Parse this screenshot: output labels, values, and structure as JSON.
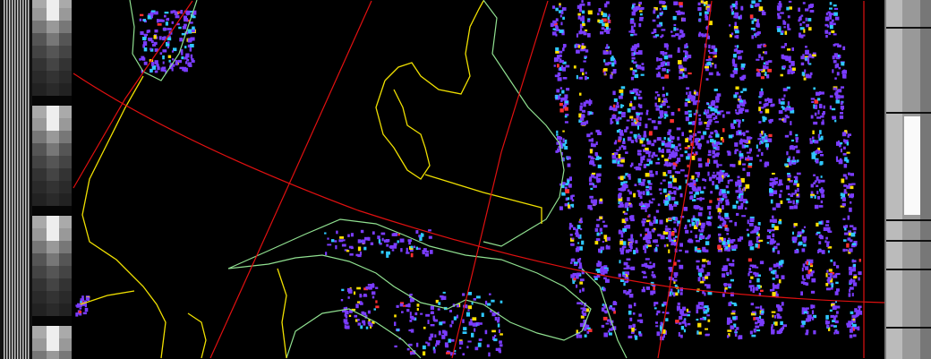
{
  "image": {
    "kind": "weather satellite image with map overlay",
    "colors": {
      "background": "#000000",
      "borders": "#f0e000",
      "coastlines": "#90e090",
      "graticule": "#e01010",
      "cloud_low": "#7a3cff",
      "cloud_mid": "#2ec8ff",
      "cloud_high": "#ffe000",
      "cloud_peak": "#ff3030"
    },
    "telemetry_strips": [
      "left",
      "right"
    ]
  }
}
